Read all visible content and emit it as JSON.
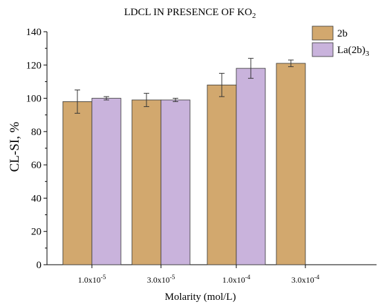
{
  "chart_data": {
    "type": "bar",
    "title": {
      "main": "LDCL IN PRESENCE OF KO",
      "sub": "2"
    },
    "xlabel": "Molarity (mol/L)",
    "ylabel": "CL-SI, %",
    "ylim": [
      0,
      140
    ],
    "yticks": [
      0,
      20,
      40,
      60,
      80,
      100,
      120,
      140
    ],
    "grid": false,
    "legend_position": "top-right",
    "categories": [
      {
        "mantissa": "1.0x10",
        "exp": "-5"
      },
      {
        "mantissa": "3.0x10",
        "exp": "-5"
      },
      {
        "mantissa": "1.0x10",
        "exp": "-4"
      },
      {
        "mantissa": "3.0x10",
        "exp": "-4"
      }
    ],
    "series": [
      {
        "name": "2b",
        "name_sub": "",
        "color": "#d2a86e",
        "values": [
          98,
          99,
          108,
          121
        ],
        "errors": [
          7,
          4,
          7,
          2
        ]
      },
      {
        "name": "La(2b)",
        "name_sub": "3",
        "color": "#c9b3dc",
        "values": [
          100,
          99,
          118,
          null
        ],
        "errors": [
          1,
          1,
          6,
          null
        ]
      }
    ]
  }
}
